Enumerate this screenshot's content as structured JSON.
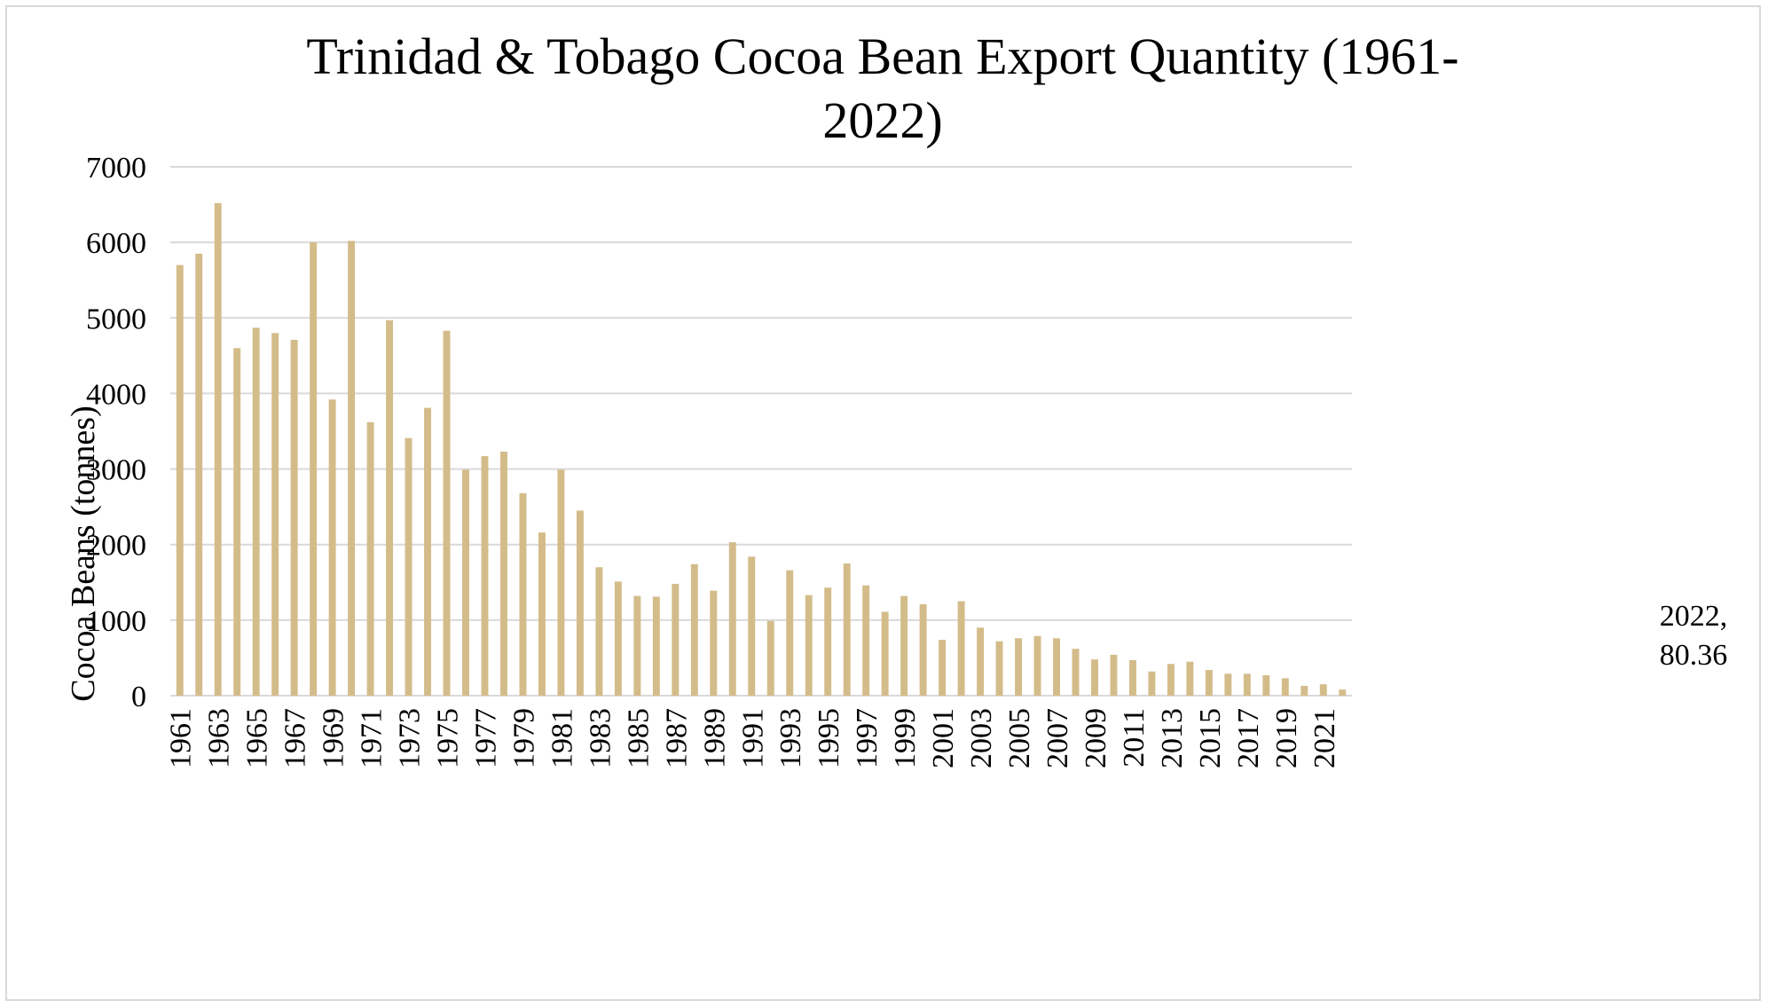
{
  "chart_data": {
    "type": "bar",
    "title_line1": "Trinidad & Tobago Cocoa Bean Export Quantity (1961-",
    "title_line2": "2022)",
    "xlabel": "",
    "ylabel": "Cocoa Beans (tonnes)",
    "ylim": [
      0,
      7000
    ],
    "yticks": [
      0,
      1000,
      2000,
      3000,
      4000,
      5000,
      6000,
      7000
    ],
    "grid": true,
    "bar_color": "#d4bc8a",
    "grid_color": "#d9d9d9",
    "data_label": {
      "line1": "2022,",
      "line2": "80.36"
    },
    "categories": [
      "1961",
      "1962",
      "1963",
      "1964",
      "1965",
      "1966",
      "1967",
      "1968",
      "1969",
      "1970",
      "1971",
      "1972",
      "1973",
      "1974",
      "1975",
      "1976",
      "1977",
      "1978",
      "1979",
      "1980",
      "1981",
      "1982",
      "1983",
      "1984",
      "1985",
      "1986",
      "1987",
      "1988",
      "1989",
      "1990",
      "1991",
      "1992",
      "1993",
      "1994",
      "1995",
      "1996",
      "1997",
      "1998",
      "1999",
      "2000",
      "2001",
      "2002",
      "2003",
      "2004",
      "2005",
      "2006",
      "2007",
      "2008",
      "2009",
      "2010",
      "2011",
      "2012",
      "2013",
      "2014",
      "2015",
      "2016",
      "2017",
      "2018",
      "2019",
      "2020",
      "2021",
      "2022"
    ],
    "values": [
      5700,
      5850,
      6520,
      4600,
      4870,
      4800,
      4710,
      6000,
      3920,
      6020,
      3620,
      4970,
      3410,
      3810,
      4830,
      2990,
      3170,
      3230,
      2680,
      2160,
      2990,
      2450,
      1700,
      1510,
      1320,
      1310,
      1480,
      1740,
      1390,
      2030,
      1840,
      990,
      1660,
      1330,
      1430,
      1750,
      1460,
      1110,
      1320,
      1210,
      740,
      1250,
      900,
      720,
      760,
      790,
      760,
      620,
      480,
      540,
      470,
      320,
      420,
      450,
      340,
      290,
      290,
      270,
      230,
      130,
      150,
      80.36
    ]
  }
}
